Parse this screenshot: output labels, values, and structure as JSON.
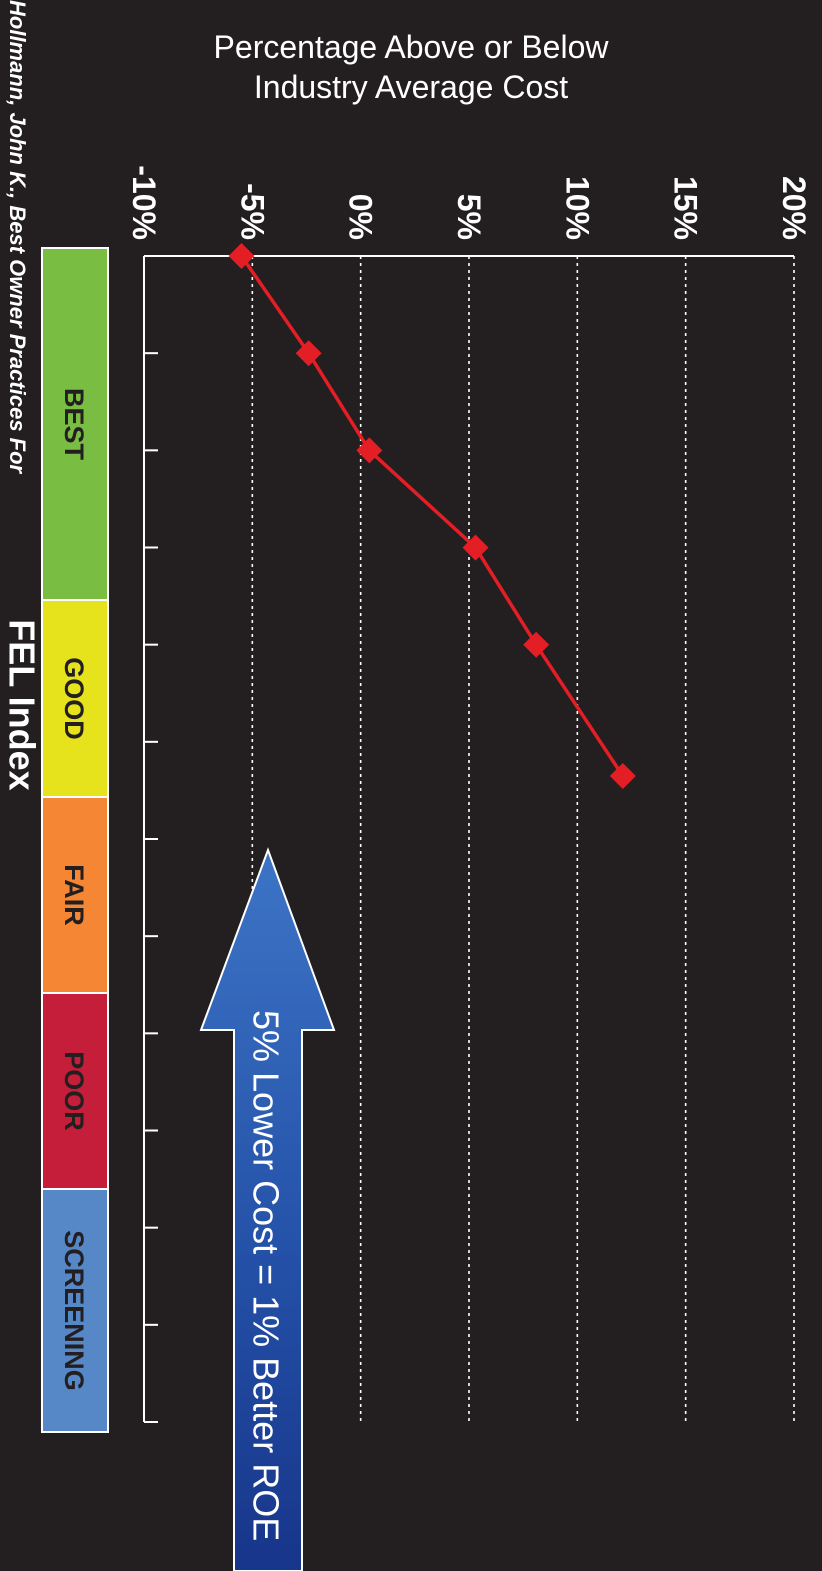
{
  "chart_data": {
    "type": "line",
    "orientation": "rotated-90-clockwise",
    "ylabel_line1": "Percentage Above or Below",
    "ylabel_line2": "Industry Average Cost",
    "xlabel": "FEL Index",
    "ylim": [
      -10,
      20
    ],
    "y_ticks": [
      -10,
      -5,
      0,
      5,
      10,
      15,
      20
    ],
    "y_tick_labels": [
      "-10%",
      "-5%",
      "0%",
      "5%",
      "10%",
      "15%",
      "20%"
    ],
    "grid": "horizontal dotted",
    "x": [
      0,
      2,
      4,
      6,
      8,
      10.7
    ],
    "series": [
      {
        "values": [
          -5.5,
          -2.4,
          0.4,
          5.3,
          8.1,
          12.1
        ],
        "color": "#e31e24"
      }
    ],
    "bands": [
      {
        "label": "BEST",
        "color": "#79bd43"
      },
      {
        "label": "GOOD",
        "color": "#e6e21b"
      },
      {
        "label": "FAIR",
        "color": "#f58634"
      },
      {
        "label": "POOR",
        "color": "#c41e3a"
      },
      {
        "label": "SCREENING",
        "color": "#5687c7"
      }
    ],
    "annotation": "5% Lower Cost = 1% Better ROE",
    "source": "Hollmann, John K., Best Owner Practices For"
  }
}
